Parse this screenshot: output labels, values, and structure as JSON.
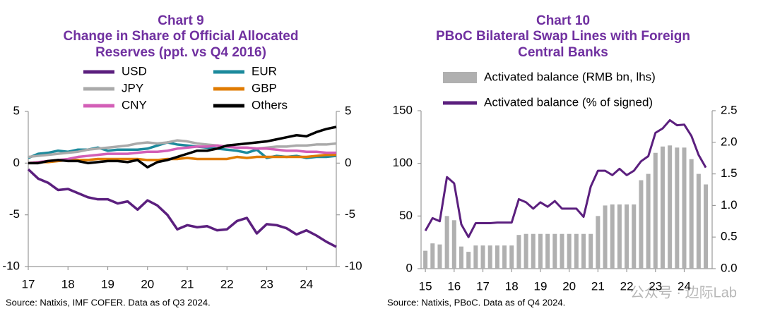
{
  "chart_data": [
    {
      "type": "line",
      "label": "Chart 9",
      "title": [
        "Change in Share of Official Allocated",
        "Reserves (ppt. vs Q4 2016)"
      ],
      "x": [
        17,
        17.25,
        17.5,
        17.75,
        18,
        18.25,
        18.5,
        18.75,
        19,
        19.25,
        19.5,
        19.75,
        20,
        20.25,
        20.5,
        20.75,
        21,
        21.25,
        21.5,
        21.75,
        22,
        22.25,
        22.5,
        22.75,
        23,
        23.25,
        23.5,
        23.75,
        24,
        24.25,
        24.5,
        24.75
      ],
      "xlim": [
        17,
        24.75
      ],
      "xticks": [
        17,
        18,
        19,
        20,
        21,
        22,
        23,
        24
      ],
      "ylim": [
        -10,
        5
      ],
      "yticks": [
        5,
        0,
        -5,
        -10
      ],
      "y2lim": [
        -10,
        5
      ],
      "y2ticks": [
        5,
        0,
        -5,
        -10
      ],
      "series": [
        {
          "name": "USD",
          "color": "#5b1f7e",
          "values": [
            -0.6,
            -1.5,
            -1.9,
            -2.6,
            -2.5,
            -2.9,
            -3.3,
            -3.5,
            -3.5,
            -3.9,
            -3.7,
            -4.5,
            -3.6,
            -4.1,
            -5.0,
            -6.4,
            -6.0,
            -6.2,
            -6.1,
            -6.5,
            -6.4,
            -5.6,
            -5.3,
            -6.8,
            -5.9,
            -6.0,
            -6.3,
            -6.9,
            -6.5,
            -7.0,
            -7.6,
            -8.1
          ]
        },
        {
          "name": "EUR",
          "color": "#1c8a9c",
          "values": [
            0.5,
            0.9,
            1.0,
            1.2,
            1.1,
            1.3,
            1.3,
            1.5,
            1.2,
            1.3,
            1.3,
            1.3,
            1.4,
            1.7,
            2.0,
            1.8,
            1.7,
            1.6,
            1.5,
            1.4,
            1.3,
            1.2,
            1.0,
            1.3,
            0.5,
            0.7,
            0.6,
            0.7,
            0.5,
            0.6,
            0.6,
            0.7
          ]
        },
        {
          "name": "JPY",
          "color": "#aaaaaa",
          "values": [
            0.6,
            0.7,
            0.8,
            0.9,
            1.0,
            1.1,
            1.3,
            1.4,
            1.5,
            1.6,
            1.7,
            1.9,
            2.0,
            1.9,
            2.0,
            2.2,
            2.1,
            1.9,
            1.8,
            1.7,
            1.6,
            1.5,
            1.5,
            1.4,
            1.5,
            1.6,
            1.6,
            1.7,
            1.7,
            1.8,
            1.8,
            1.9
          ]
        },
        {
          "name": "GBP",
          "color": "#e07b00",
          "values": [
            0,
            0.1,
            0.1,
            0.2,
            0.3,
            0.3,
            0.3,
            0.4,
            0.4,
            0.4,
            0.4,
            0.4,
            0.3,
            0.3,
            0.4,
            0.4,
            0.5,
            0.4,
            0.4,
            0.4,
            0.4,
            0.6,
            0.5,
            0.6,
            0.6,
            0.6,
            0.6,
            0.6,
            0.6,
            0.7,
            0.8,
            0.8
          ]
        },
        {
          "name": "CNY",
          "color": "#d35fb7",
          "values": [
            0,
            0.1,
            0.2,
            0.3,
            0.4,
            0.6,
            0.7,
            0.8,
            0.9,
            0.9,
            0.9,
            1.0,
            1.1,
            1.1,
            1.2,
            1.4,
            1.5,
            1.6,
            1.6,
            1.7,
            1.6,
            1.5,
            1.5,
            1.4,
            1.4,
            1.3,
            1.2,
            1.2,
            1.1,
            1.1,
            1.0,
            1.0
          ]
        },
        {
          "name": "Others",
          "color": "#000000",
          "values": [
            0,
            0,
            0.2,
            0.3,
            0.2,
            0.2,
            0,
            0.1,
            0.2,
            0.2,
            0.1,
            0.3,
            -0.4,
            0.1,
            0.3,
            0.6,
            0.9,
            1.2,
            1.2,
            1.4,
            1.7,
            1.8,
            1.9,
            2.0,
            2.1,
            2.3,
            2.5,
            2.7,
            2.6,
            3.0,
            3.3,
            3.5
          ]
        }
      ],
      "source": "Source: Natixis, IMF COFER. Data as of Q3 2024."
    },
    {
      "type": "combo",
      "label": "Chart 10",
      "title": [
        "PBoC Bilateral Swap Lines with Foreign",
        "Central Banks"
      ],
      "x": [
        15,
        15.25,
        15.5,
        15.75,
        16,
        16.25,
        16.5,
        16.75,
        17,
        17.25,
        17.5,
        17.75,
        18,
        18.25,
        18.5,
        18.75,
        19,
        19.25,
        19.5,
        19.75,
        20,
        20.25,
        20.5,
        20.75,
        21,
        21.25,
        21.5,
        21.75,
        22,
        22.25,
        22.5,
        22.75,
        23,
        23.25,
        23.5,
        23.75,
        24,
        24.25,
        24.5,
        24.75
      ],
      "xlim": [
        14.85,
        24.97
      ],
      "xticks": [
        15,
        16,
        17,
        18,
        19,
        20,
        21,
        22,
        23,
        24
      ],
      "ylim": [
        0,
        150
      ],
      "yticks": [
        0,
        50,
        100,
        150
      ],
      "y2lim": [
        0,
        2.5
      ],
      "y2ticks": [
        {
          "value": 0,
          "label": "0.0"
        },
        {
          "value": 0.5,
          "label": "0.5"
        },
        {
          "value": 1,
          "label": "1.0"
        },
        {
          "value": 1.5,
          "label": "1.5"
        },
        {
          "value": 2,
          "label": "2.0"
        },
        {
          "value": 2.5,
          "label": "2.5"
        }
      ],
      "series": [
        {
          "name": "Activated balance (RMB bn, lhs)",
          "type": "bar",
          "color": "#b0b0b0",
          "values": [
            17,
            24,
            23,
            50,
            46,
            21,
            16,
            22,
            22,
            22,
            22,
            22,
            22,
            32,
            33,
            33,
            33,
            33,
            33,
            33,
            33,
            33,
            33,
            33,
            50,
            60,
            61,
            61,
            61,
            61,
            84,
            90,
            110,
            116,
            117,
            115,
            115,
            104,
            90,
            80
          ]
        },
        {
          "name": "Activated balance (% of signed)",
          "type": "line",
          "axis": "y2",
          "color": "#5b1f7e",
          "values": [
            0.6,
            0.8,
            0.75,
            1.45,
            1.35,
            0.7,
            0.5,
            0.72,
            0.72,
            0.72,
            0.73,
            0.73,
            0.73,
            1.1,
            1.05,
            0.95,
            1.05,
            0.98,
            1.07,
            0.95,
            0.95,
            0.95,
            0.82,
            1.3,
            1.55,
            1.55,
            1.48,
            1.58,
            1.48,
            1.55,
            1.7,
            1.78,
            2.15,
            2.22,
            2.35,
            2.27,
            2.28,
            2.1,
            1.8,
            1.6
          ]
        }
      ],
      "source": "Source: Natixis, PBoC. Data as of Q4 2024."
    }
  ],
  "watermark": "公众号 · 边际Lab"
}
